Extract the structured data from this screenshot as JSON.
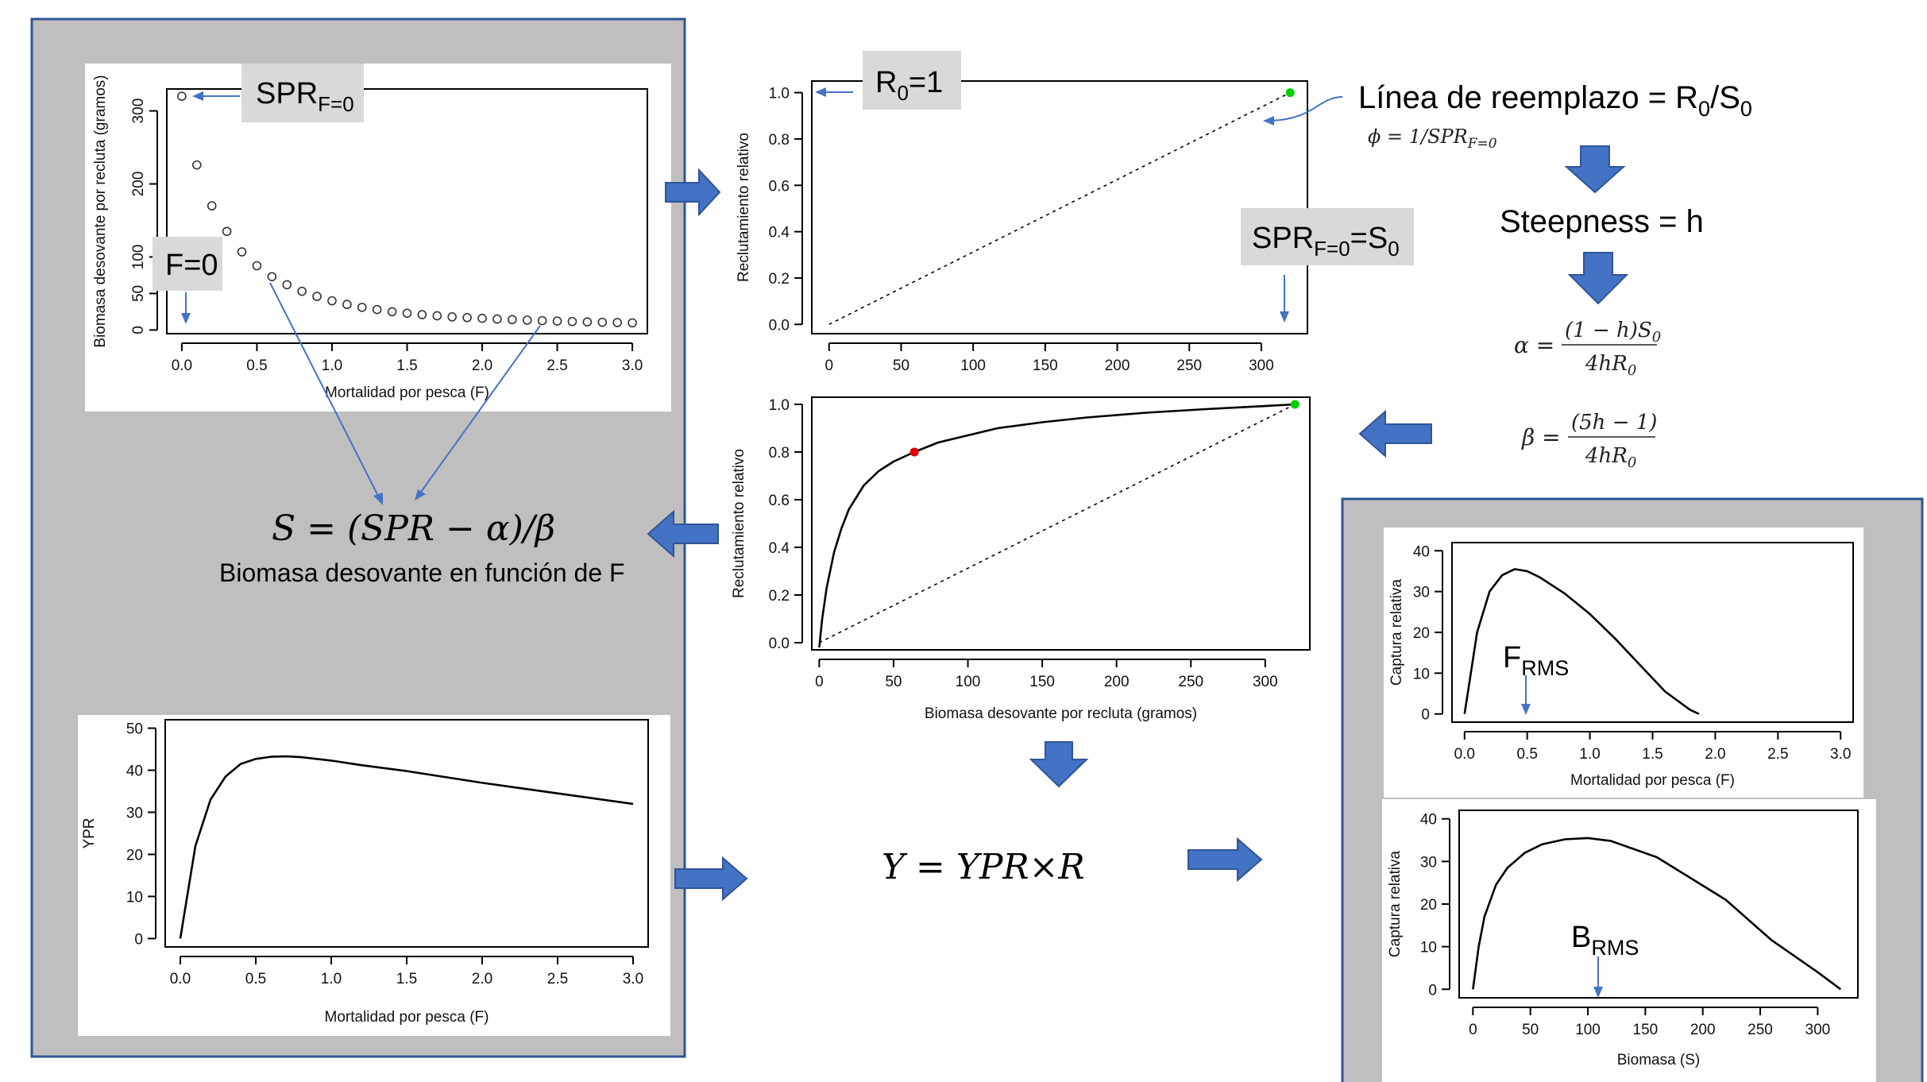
{
  "colors": {
    "panel_bg": "#bfbfbf",
    "panel_border": "#2f5597",
    "arrow_fill": "#4472c4",
    "arrow_stroke": "#2f5597",
    "callout_bg": "#d9d9d9",
    "point_green": "#00cc00",
    "point_red": "#e00000"
  },
  "spr_chart": {
    "callout_spr": "SPR",
    "callout_spr_sub": "F=0",
    "callout_f0": "F=0"
  },
  "recruit_top": {
    "callout_r0": "R",
    "callout_r0_sub": "0",
    "callout_r0_tail": "=1",
    "callout_s0": "SPR",
    "callout_s0_sub": "F=0",
    "callout_s0_tail": "=S",
    "callout_s0_sub2": "0"
  },
  "formulas": {
    "replacement_line": "Línea de reemplazo = R",
    "replacement_sub": "0",
    "replacement_tail": "/S",
    "replacement_sub2": "0",
    "phi_lhs": "ϕ = 1/SPR",
    "phi_sub": "F=0",
    "steepness": "Steepness = h",
    "alpha_lhs": "α =",
    "alpha_num": "(1 − h)S",
    "alpha_num_sub": "0",
    "alpha_den": "4hR",
    "alpha_den_sub": "0",
    "beta_lhs": "β =",
    "beta_num": "(5h − 1)",
    "beta_den": "4hR",
    "beta_den_sub": "0",
    "s_equation": "S = (SPR − α)/β",
    "s_caption": "Biomasa desovante en función de F",
    "y_equation": "Y = YPR×R"
  },
  "catch_f": {
    "callout": "F",
    "callout_sub": "RMS"
  },
  "catch_s": {
    "callout": "B",
    "callout_sub": "RMS"
  },
  "chart_data": [
    {
      "id": "spr_vs_f",
      "type": "scatter",
      "xlabel": "Mortalidad por pesca (F)",
      "ylabel": "Biomasa desovante por recluta (gramos)",
      "xlim": [
        -0.1,
        3.1
      ],
      "ylim": [
        -5,
        330
      ],
      "xticks": [
        0.0,
        0.5,
        1.0,
        1.5,
        2.0,
        2.5,
        3.0
      ],
      "yticks": [
        0,
        50,
        100,
        200,
        300
      ],
      "xticklabels": [
        "0.0",
        "0.5",
        "1.0",
        "1.5",
        "2.0",
        "2.5",
        "3.0"
      ],
      "yticklabels": [
        "0",
        "50",
        "100",
        "200",
        "300"
      ],
      "x": [
        0.0,
        0.1,
        0.2,
        0.3,
        0.4,
        0.5,
        0.6,
        0.7,
        0.8,
        0.9,
        1.0,
        1.1,
        1.2,
        1.3,
        1.4,
        1.5,
        1.6,
        1.7,
        1.8,
        1.9,
        2.0,
        2.1,
        2.2,
        2.3,
        2.4,
        2.5,
        2.6,
        2.7,
        2.8,
        2.9,
        3.0
      ],
      "y": [
        320,
        226,
        170,
        135,
        107,
        88,
        73,
        62,
        53,
        46,
        40,
        35,
        31,
        28,
        25,
        23,
        21,
        19.5,
        18,
        17,
        16,
        15,
        14.2,
        13.5,
        12.8,
        12.2,
        11.6,
        11.1,
        10.6,
        10.2,
        9.8
      ]
    },
    {
      "id": "recruit_replacement",
      "type": "line",
      "xlabel": "",
      "ylabel": "Reclutamiento relativo",
      "xlim": [
        -12,
        332
      ],
      "ylim": [
        -0.04,
        1.05
      ],
      "xticks": [
        0,
        50,
        100,
        150,
        200,
        250,
        300
      ],
      "yticks": [
        0.0,
        0.2,
        0.4,
        0.6,
        0.8,
        1.0
      ],
      "xticklabels": [
        "0",
        "50",
        "100",
        "150",
        "200",
        "250",
        "300"
      ],
      "yticklabels": [
        "0.0",
        "0.2",
        "0.4",
        "0.6",
        "0.8",
        "1.0"
      ],
      "replacement_line": {
        "x": [
          0,
          320
        ],
        "y": [
          0,
          1.0
        ]
      },
      "point_green": {
        "x": 320,
        "y": 1.0
      }
    },
    {
      "id": "recruit_bh",
      "type": "line",
      "xlabel": "Biomasa desovante por recluta (gramos)",
      "ylabel": "Reclutamiento relativo",
      "xlim": [
        -5,
        330
      ],
      "ylim": [
        -0.03,
        1.03
      ],
      "xticks": [
        0,
        50,
        100,
        150,
        200,
        250,
        300
      ],
      "yticks": [
        0.0,
        0.2,
        0.4,
        0.6,
        0.8,
        1.0
      ],
      "xticklabels": [
        "0",
        "50",
        "100",
        "150",
        "200",
        "250",
        "300"
      ],
      "yticklabels": [
        "0.0",
        "0.2",
        "0.4",
        "0.6",
        "0.8",
        "1.0"
      ],
      "curve": {
        "x": [
          0,
          2,
          5,
          10,
          15,
          20,
          30,
          40,
          50,
          64,
          80,
          100,
          120,
          150,
          180,
          220,
          260,
          300,
          320
        ],
        "y": [
          -0.02,
          0.1,
          0.23,
          0.38,
          0.48,
          0.56,
          0.66,
          0.72,
          0.76,
          0.8,
          0.84,
          0.87,
          0.9,
          0.925,
          0.945,
          0.965,
          0.98,
          0.993,
          1.0
        ]
      },
      "replacement_line": {
        "x": [
          0,
          320
        ],
        "y": [
          0,
          1.0
        ]
      },
      "point_red": {
        "x": 64,
        "y": 0.8
      },
      "point_green": {
        "x": 320,
        "y": 1.0
      }
    },
    {
      "id": "ypr_vs_f",
      "type": "line",
      "xlabel": "Mortalidad por pesca (F)",
      "ylabel": "YPR",
      "xlim": [
        -0.1,
        3.1
      ],
      "ylim": [
        -2,
        52
      ],
      "xticks": [
        0.0,
        0.5,
        1.0,
        1.5,
        2.0,
        2.5,
        3.0
      ],
      "yticks": [
        0,
        10,
        20,
        30,
        40,
        50
      ],
      "xticklabels": [
        "0.0",
        "0.5",
        "1.0",
        "1.5",
        "2.0",
        "2.5",
        "3.0"
      ],
      "yticklabels": [
        "0",
        "10",
        "20",
        "30",
        "40",
        "50"
      ],
      "x": [
        0.0,
        0.1,
        0.2,
        0.3,
        0.4,
        0.5,
        0.6,
        0.7,
        0.8,
        1.0,
        1.2,
        1.5,
        2.0,
        2.5,
        3.0
      ],
      "y": [
        0,
        22,
        33,
        38.5,
        41.5,
        42.7,
        43.2,
        43.3,
        43.1,
        42.3,
        41.2,
        39.8,
        37.0,
        34.5,
        32.0
      ]
    },
    {
      "id": "catch_vs_f",
      "type": "line",
      "xlabel": "Mortalidad por pesca (F)",
      "ylabel": "Captura relativa",
      "xlim": [
        -0.1,
        3.1
      ],
      "ylim": [
        -2,
        42
      ],
      "xticks": [
        0.0,
        0.5,
        1.0,
        1.5,
        2.0,
        2.5,
        3.0
      ],
      "yticks": [
        0,
        10,
        20,
        30,
        40
      ],
      "xticklabels": [
        "0.0",
        "0.5",
        "1.0",
        "1.5",
        "2.0",
        "2.5",
        "3.0"
      ],
      "yticklabels": [
        "0",
        "10",
        "20",
        "30",
        "40"
      ],
      "x": [
        0.0,
        0.05,
        0.1,
        0.2,
        0.3,
        0.4,
        0.5,
        0.6,
        0.8,
        1.0,
        1.2,
        1.4,
        1.6,
        1.8,
        1.87
      ],
      "y": [
        0,
        10,
        20,
        30,
        34,
        35.5,
        35,
        33.5,
        29.5,
        24.5,
        18.5,
        12,
        5.5,
        1,
        0
      ]
    },
    {
      "id": "catch_vs_s",
      "type": "line",
      "xlabel": "Biomasa (S)",
      "ylabel": "Captura relativa",
      "xlim": [
        -12,
        335
      ],
      "ylim": [
        -2,
        42
      ],
      "xticks": [
        0,
        50,
        100,
        150,
        200,
        250,
        300
      ],
      "yticks": [
        0,
        10,
        20,
        30,
        40
      ],
      "xticklabels": [
        "0",
        "50",
        "100",
        "150",
        "200",
        "250",
        "300"
      ],
      "yticklabels": [
        "0",
        "10",
        "20",
        "30",
        "40"
      ],
      "x": [
        0,
        5,
        10,
        20,
        30,
        45,
        60,
        80,
        100,
        120,
        160,
        220,
        260,
        300,
        320
      ],
      "y": [
        0,
        10,
        17,
        24.5,
        28.5,
        32,
        34,
        35.2,
        35.5,
        34.8,
        31,
        21,
        11.5,
        4,
        0
      ]
    }
  ]
}
